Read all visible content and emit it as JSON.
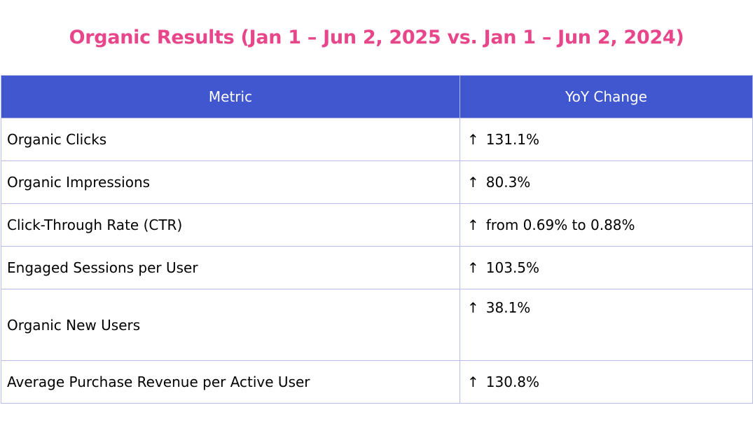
{
  "title": "Organic Results (Jan 1 – Jun 2, 2025 vs. Jan 1 – Jun 2, 2024)",
  "colors": {
    "title": "#e8468b",
    "header_bg": "#4057cf",
    "grid": "#b6bde8"
  },
  "table": {
    "headers": [
      "Metric",
      "YoY Change"
    ],
    "arrow_icon": "up-arrow-icon",
    "arrow_glyph": "↑",
    "rows": [
      {
        "metric": "Organic Clicks",
        "change": "131.1%"
      },
      {
        "metric": "Organic Impressions",
        "change": "80.3%"
      },
      {
        "metric": "Click-Through Rate (CTR)",
        "change": "from 0.69% to 0.88%"
      },
      {
        "metric": "Engaged Sessions per User",
        "change": "103.5%"
      },
      {
        "metric": "Organic New Users",
        "change": "38.1%"
      },
      {
        "metric": "Average Purchase Revenue per Active User",
        "change": "130.8%"
      }
    ]
  }
}
